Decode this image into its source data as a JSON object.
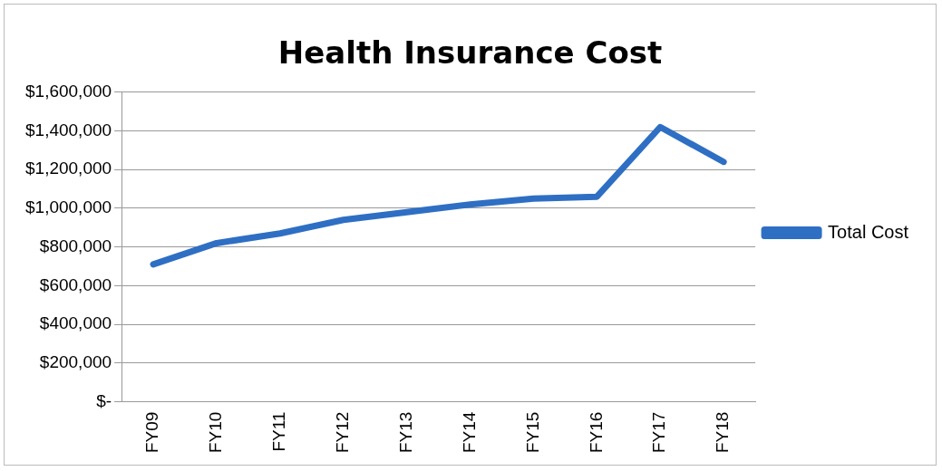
{
  "chart_data": {
    "type": "line",
    "title": "Health Insurance Cost",
    "categories": [
      "FY09",
      "FY10",
      "FY11",
      "FY12",
      "FY13",
      "FY14",
      "FY15",
      "FY16",
      "FY17",
      "FY18"
    ],
    "series": [
      {
        "name": "Total Cost",
        "color": "#2e6fc4",
        "values": [
          710000,
          820000,
          870000,
          940000,
          980000,
          1020000,
          1050000,
          1060000,
          1420000,
          1240000
        ]
      }
    ],
    "ylim": [
      0,
      1600000
    ],
    "yticks": [
      {
        "value": 0,
        "label": "$-"
      },
      {
        "value": 200000,
        "label": "$200,000"
      },
      {
        "value": 400000,
        "label": "$400,000"
      },
      {
        "value": 600000,
        "label": "$600,000"
      },
      {
        "value": 800000,
        "label": "$800,000"
      },
      {
        "value": 1000000,
        "label": "$1,000,000"
      },
      {
        "value": 1200000,
        "label": "$1,200,000"
      },
      {
        "value": 1400000,
        "label": "$1,400,000"
      },
      {
        "value": 1600000,
        "label": "$1,600,000"
      }
    ],
    "grid": "y",
    "legend": "right",
    "marker": "none",
    "line_style": "solid"
  }
}
